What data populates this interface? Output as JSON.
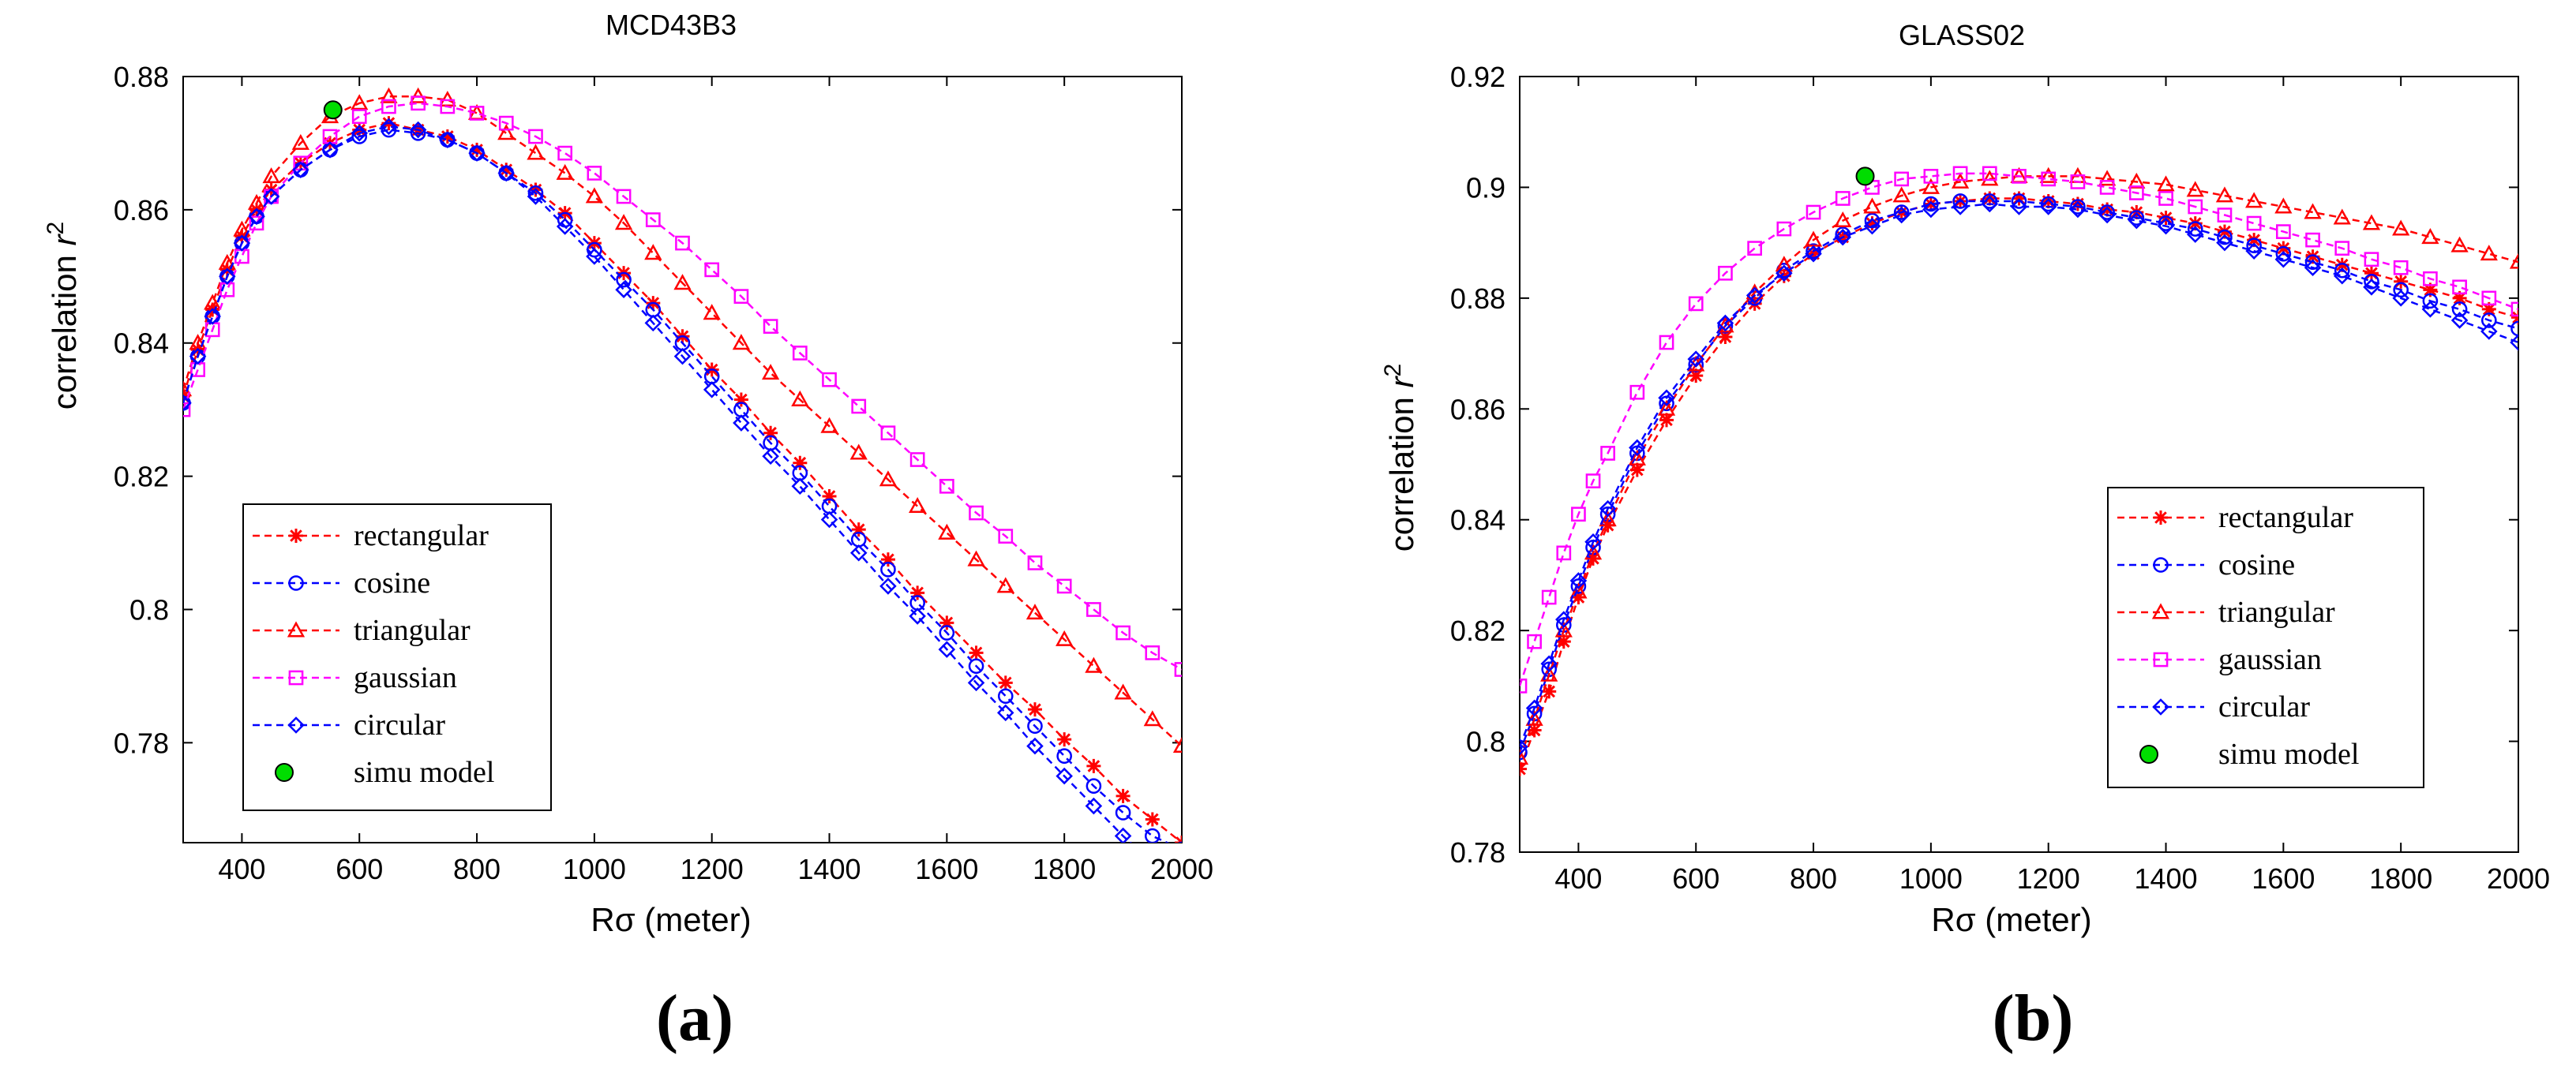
{
  "chart_data": [
    {
      "type": "line",
      "tag": "(a)",
      "title": "MCD43B3",
      "xlabel": "Rσ (meter)",
      "ylabel_prefix": "correlation ",
      "ylabel_var": "r",
      "ylabel_exp": "2",
      "xlim": [
        300,
        2000
      ],
      "ylim": [
        0.765,
        0.88
      ],
      "xticks": [
        400,
        600,
        800,
        1000,
        1200,
        1400,
        1600,
        1800,
        2000
      ],
      "xtick_labels": [
        "400",
        "600",
        "800",
        "1000",
        "1200",
        "1400",
        "1600",
        "1800",
        "2000"
      ],
      "yticks": [
        0.78,
        0.8,
        0.82,
        0.84,
        0.86,
        0.88
      ],
      "ytick_labels": [
        "0.78",
        "0.8",
        "0.82",
        "0.84",
        "0.86",
        "0.88"
      ],
      "legend_position": "bottom-left",
      "series": [
        {
          "name": "rectangular",
          "color": "#ff0000",
          "marker": "star",
          "x": [
            300,
            325,
            350,
            375,
            400,
            425,
            450,
            500,
            550,
            600,
            650,
            700,
            750,
            800,
            850,
            900,
            950,
            1000,
            1050,
            1100,
            1150,
            1200,
            1250,
            1300,
            1350,
            1400,
            1450,
            1500,
            1550,
            1600,
            1650,
            1700,
            1750,
            1800,
            1850,
            1900,
            1950,
            2000
          ],
          "y": [
            0.832,
            0.839,
            0.845,
            0.851,
            0.856,
            0.86,
            0.863,
            0.867,
            0.87,
            0.872,
            0.873,
            0.872,
            0.871,
            0.869,
            0.866,
            0.863,
            0.8595,
            0.855,
            0.8505,
            0.846,
            0.841,
            0.836,
            0.8315,
            0.8265,
            0.822,
            0.817,
            0.812,
            0.8075,
            0.8025,
            0.798,
            0.7935,
            0.789,
            0.785,
            0.7805,
            0.7765,
            0.772,
            0.7685,
            0.765
          ]
        },
        {
          "name": "cosine",
          "color": "#0000ff",
          "marker": "circle",
          "x": [
            300,
            325,
            350,
            375,
            400,
            425,
            450,
            500,
            550,
            600,
            650,
            700,
            750,
            800,
            850,
            900,
            950,
            1000,
            1050,
            1100,
            1150,
            1200,
            1250,
            1300,
            1350,
            1400,
            1450,
            1500,
            1550,
            1600,
            1650,
            1700,
            1750,
            1800,
            1850,
            1900,
            1950,
            2000
          ],
          "y": [
            0.831,
            0.838,
            0.844,
            0.85,
            0.855,
            0.859,
            0.862,
            0.866,
            0.869,
            0.871,
            0.872,
            0.8715,
            0.8705,
            0.8685,
            0.8655,
            0.8625,
            0.8585,
            0.854,
            0.8495,
            0.845,
            0.84,
            0.835,
            0.83,
            0.825,
            0.8205,
            0.8155,
            0.8105,
            0.806,
            0.801,
            0.7965,
            0.7915,
            0.787,
            0.7825,
            0.778,
            0.7735,
            0.7695,
            0.766,
            0.764
          ]
        },
        {
          "name": "triangular",
          "color": "#ff0000",
          "marker": "triangle",
          "x": [
            300,
            325,
            350,
            375,
            400,
            425,
            450,
            500,
            550,
            600,
            650,
            700,
            750,
            800,
            850,
            900,
            950,
            1000,
            1050,
            1100,
            1150,
            1200,
            1250,
            1300,
            1350,
            1400,
            1450,
            1500,
            1550,
            1600,
            1650,
            1700,
            1750,
            1800,
            1850,
            1900,
            1950,
            2000
          ],
          "y": [
            0.833,
            0.84,
            0.846,
            0.852,
            0.857,
            0.861,
            0.865,
            0.87,
            0.874,
            0.876,
            0.877,
            0.877,
            0.8765,
            0.8745,
            0.8715,
            0.8685,
            0.8655,
            0.862,
            0.858,
            0.8535,
            0.849,
            0.8445,
            0.84,
            0.8355,
            0.8315,
            0.8275,
            0.8235,
            0.8195,
            0.8155,
            0.8115,
            0.8075,
            0.8035,
            0.7995,
            0.7955,
            0.7915,
            0.7875,
            0.7835,
            0.7795
          ]
        },
        {
          "name": "gaussian",
          "color": "#ff00ff",
          "marker": "square",
          "x": [
            300,
            325,
            350,
            375,
            400,
            425,
            450,
            500,
            550,
            600,
            650,
            700,
            750,
            800,
            850,
            900,
            950,
            1000,
            1050,
            1100,
            1150,
            1200,
            1250,
            1300,
            1350,
            1400,
            1450,
            1500,
            1550,
            1600,
            1650,
            1700,
            1750,
            1800,
            1850,
            1900,
            1950,
            2000
          ],
          "y": [
            0.83,
            0.836,
            0.842,
            0.848,
            0.853,
            0.858,
            0.862,
            0.867,
            0.871,
            0.874,
            0.8755,
            0.876,
            0.8755,
            0.8745,
            0.873,
            0.871,
            0.8685,
            0.8655,
            0.862,
            0.8585,
            0.855,
            0.851,
            0.847,
            0.8425,
            0.8385,
            0.8345,
            0.8305,
            0.8265,
            0.8225,
            0.8185,
            0.8145,
            0.811,
            0.807,
            0.8035,
            0.8,
            0.7965,
            0.7935,
            0.791
          ]
        },
        {
          "name": "circular",
          "color": "#0000ff",
          "marker": "diamond",
          "x": [
            300,
            325,
            350,
            375,
            400,
            425,
            450,
            500,
            550,
            600,
            650,
            700,
            750,
            800,
            850,
            900,
            950,
            1000,
            1050,
            1100,
            1150,
            1200,
            1250,
            1300,
            1350,
            1400,
            1450,
            1500,
            1550,
            1600,
            1650,
            1700,
            1750,
            1800,
            1850,
            1900,
            1950,
            2000
          ],
          "y": [
            0.831,
            0.838,
            0.844,
            0.85,
            0.855,
            0.859,
            0.862,
            0.866,
            0.869,
            0.8715,
            0.8725,
            0.872,
            0.8705,
            0.8685,
            0.8655,
            0.862,
            0.8575,
            0.853,
            0.848,
            0.843,
            0.838,
            0.833,
            0.828,
            0.823,
            0.8185,
            0.8135,
            0.8085,
            0.8035,
            0.799,
            0.794,
            0.789,
            0.7845,
            0.7795,
            0.775,
            0.7705,
            0.766,
            0.762,
            0.758
          ]
        }
      ],
      "point": {
        "name": "simu model",
        "color": "#00dd00",
        "x": 555,
        "y": 0.875
      }
    },
    {
      "type": "line",
      "tag": "(b)",
      "title": "GLASS02",
      "xlabel": "Rσ (meter)",
      "ylabel_prefix": "correlation ",
      "ylabel_var": "r",
      "ylabel_exp": "2",
      "xlim": [
        300,
        2000
      ],
      "ylim": [
        0.78,
        0.92
      ],
      "xticks": [
        400,
        600,
        800,
        1000,
        1200,
        1400,
        1600,
        1800,
        2000
      ],
      "xtick_labels": [
        "400",
        "600",
        "800",
        "1000",
        "1200",
        "1400",
        "1600",
        "1800",
        "2000"
      ],
      "yticks": [
        0.78,
        0.8,
        0.82,
        0.84,
        0.86,
        0.88,
        0.9,
        0.92
      ],
      "ytick_labels": [
        "0.78",
        "0.8",
        "0.82",
        "0.84",
        "0.86",
        "0.88",
        "0.9",
        "0.92"
      ],
      "legend_position": "bottom-right",
      "series": [
        {
          "name": "rectangular",
          "color": "#ff0000",
          "marker": "star",
          "x": [
            300,
            325,
            350,
            375,
            400,
            425,
            450,
            500,
            550,
            600,
            650,
            700,
            750,
            800,
            850,
            900,
            950,
            1000,
            1050,
            1100,
            1150,
            1200,
            1250,
            1300,
            1350,
            1400,
            1450,
            1500,
            1550,
            1600,
            1650,
            1700,
            1750,
            1800,
            1850,
            1900,
            1950,
            2000
          ],
          "y": [
            0.795,
            0.802,
            0.809,
            0.818,
            0.826,
            0.833,
            0.839,
            0.849,
            0.858,
            0.866,
            0.873,
            0.879,
            0.884,
            0.888,
            0.891,
            0.8935,
            0.8955,
            0.897,
            0.8975,
            0.898,
            0.898,
            0.8975,
            0.897,
            0.896,
            0.8955,
            0.8945,
            0.8935,
            0.892,
            0.8905,
            0.889,
            0.8875,
            0.886,
            0.8845,
            0.883,
            0.8815,
            0.88,
            0.878,
            0.8765
          ]
        },
        {
          "name": "cosine",
          "color": "#0000ff",
          "marker": "circle",
          "x": [
            300,
            325,
            350,
            375,
            400,
            425,
            450,
            500,
            550,
            600,
            650,
            700,
            750,
            800,
            850,
            900,
            950,
            1000,
            1050,
            1100,
            1150,
            1200,
            1250,
            1300,
            1350,
            1400,
            1450,
            1500,
            1550,
            1600,
            1650,
            1700,
            1750,
            1800,
            1850,
            1900,
            1950,
            2000
          ],
          "y": [
            0.798,
            0.805,
            0.813,
            0.821,
            0.828,
            0.835,
            0.841,
            0.852,
            0.861,
            0.868,
            0.875,
            0.88,
            0.885,
            0.8885,
            0.8915,
            0.894,
            0.8955,
            0.897,
            0.8975,
            0.8975,
            0.8975,
            0.897,
            0.8965,
            0.8955,
            0.8945,
            0.8935,
            0.8925,
            0.891,
            0.8895,
            0.888,
            0.8865,
            0.885,
            0.883,
            0.8815,
            0.8795,
            0.878,
            0.876,
            0.8745
          ]
        },
        {
          "name": "triangular",
          "color": "#ff0000",
          "marker": "triangle",
          "x": [
            300,
            325,
            350,
            375,
            400,
            425,
            450,
            500,
            550,
            600,
            650,
            700,
            750,
            800,
            850,
            900,
            950,
            1000,
            1050,
            1100,
            1150,
            1200,
            1250,
            1300,
            1350,
            1400,
            1450,
            1500,
            1550,
            1600,
            1650,
            1700,
            1750,
            1800,
            1850,
            1900,
            1950,
            2000
          ],
          "y": [
            0.797,
            0.804,
            0.812,
            0.82,
            0.827,
            0.834,
            0.84,
            0.851,
            0.86,
            0.868,
            0.875,
            0.881,
            0.886,
            0.8905,
            0.894,
            0.8965,
            0.8985,
            0.9,
            0.901,
            0.9015,
            0.902,
            0.902,
            0.902,
            0.9015,
            0.901,
            0.9005,
            0.8995,
            0.8985,
            0.8975,
            0.8965,
            0.8955,
            0.8945,
            0.8935,
            0.8925,
            0.891,
            0.8895,
            0.888,
            0.8865
          ]
        },
        {
          "name": "gaussian",
          "color": "#ff00ff",
          "marker": "square",
          "x": [
            300,
            325,
            350,
            375,
            400,
            425,
            450,
            500,
            550,
            600,
            650,
            700,
            750,
            800,
            850,
            900,
            950,
            1000,
            1050,
            1100,
            1150,
            1200,
            1250,
            1300,
            1350,
            1400,
            1450,
            1500,
            1550,
            1600,
            1650,
            1700,
            1750,
            1800,
            1850,
            1900,
            1950,
            2000
          ],
          "y": [
            0.81,
            0.818,
            0.826,
            0.834,
            0.841,
            0.847,
            0.852,
            0.863,
            0.872,
            0.879,
            0.8845,
            0.889,
            0.8925,
            0.8955,
            0.898,
            0.9,
            0.9015,
            0.902,
            0.9025,
            0.9025,
            0.902,
            0.9015,
            0.901,
            0.9,
            0.899,
            0.898,
            0.8965,
            0.895,
            0.8935,
            0.892,
            0.8905,
            0.889,
            0.887,
            0.8855,
            0.8835,
            0.882,
            0.88,
            0.878
          ]
        },
        {
          "name": "circular",
          "color": "#0000ff",
          "marker": "diamond",
          "x": [
            300,
            325,
            350,
            375,
            400,
            425,
            450,
            500,
            550,
            600,
            650,
            700,
            750,
            800,
            850,
            900,
            950,
            1000,
            1050,
            1100,
            1150,
            1200,
            1250,
            1300,
            1350,
            1400,
            1450,
            1500,
            1550,
            1600,
            1650,
            1700,
            1750,
            1800,
            1850,
            1900,
            1950,
            2000
          ],
          "y": [
            0.799,
            0.806,
            0.814,
            0.822,
            0.829,
            0.836,
            0.842,
            0.853,
            0.862,
            0.869,
            0.8755,
            0.8805,
            0.8845,
            0.888,
            0.891,
            0.893,
            0.895,
            0.896,
            0.8965,
            0.897,
            0.8965,
            0.8965,
            0.896,
            0.895,
            0.894,
            0.893,
            0.8915,
            0.89,
            0.8885,
            0.887,
            0.8855,
            0.884,
            0.882,
            0.88,
            0.878,
            0.876,
            0.874,
            0.872
          ]
        }
      ],
      "point": {
        "name": "simu model",
        "color": "#00dd00",
        "x": 888,
        "y": 0.902
      }
    }
  ]
}
